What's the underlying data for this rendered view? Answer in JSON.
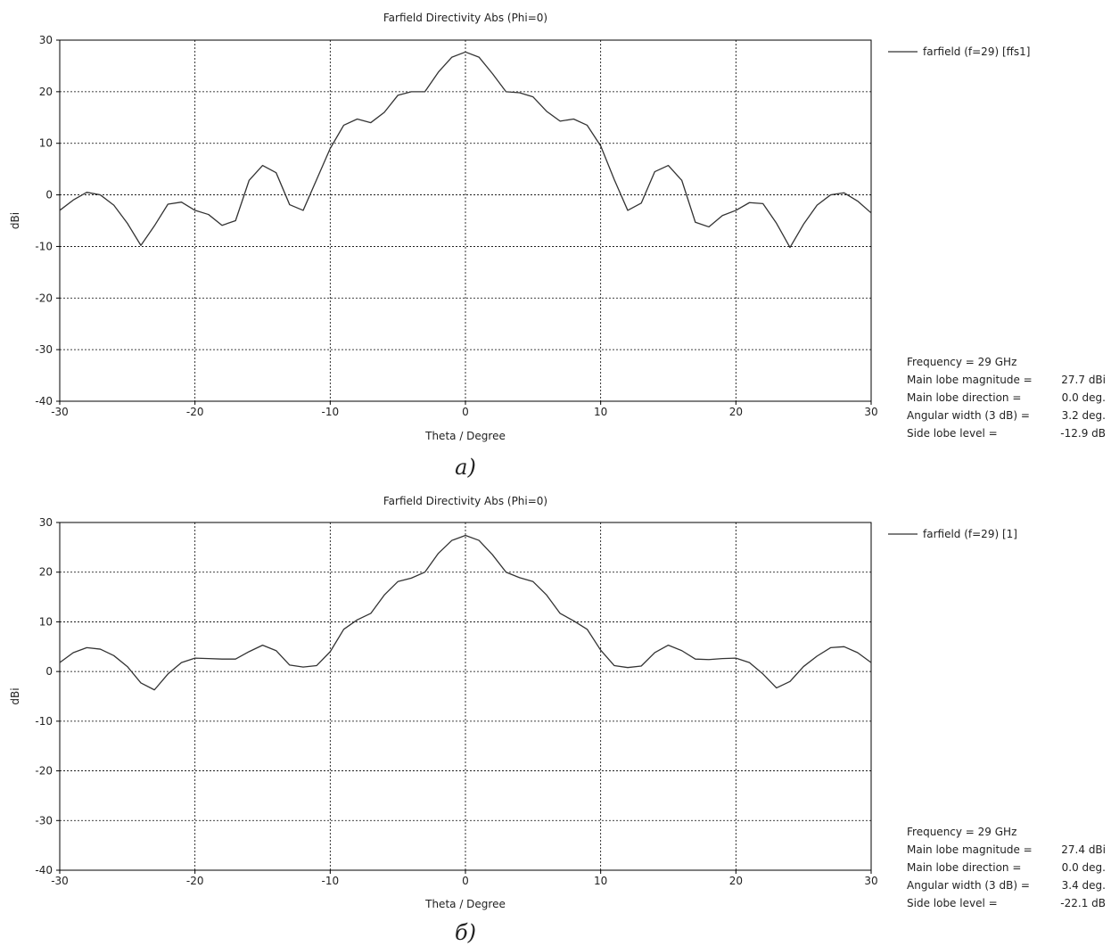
{
  "chart_data": [
    {
      "type": "line",
      "title": "Farfield Directivity Abs (Phi=0)",
      "xlabel": "Theta / Degree",
      "ylabel": "dBi",
      "xlim": [
        -30,
        30
      ],
      "ylim": [
        -40,
        30
      ],
      "xticks": [
        -30,
        -20,
        -10,
        0,
        10,
        20,
        30
      ],
      "yticks": [
        -40,
        -30,
        -20,
        -10,
        0,
        10,
        20,
        30
      ],
      "grid": true,
      "legend_position": "right",
      "caption": "a)",
      "series": [
        {
          "name": "farfield (f=29) [ffs1]",
          "color": "#333333",
          "x": [
            -30,
            -29,
            -28,
            -27,
            -26,
            -25,
            -24,
            -23,
            -22,
            -21,
            -20,
            -19,
            -18,
            -17,
            -16,
            -15,
            -14,
            -13,
            -12,
            -11,
            -10,
            -9,
            -8,
            -7,
            -6,
            -5,
            -4,
            -3,
            -2,
            -1,
            0,
            1,
            2,
            3,
            4,
            5,
            6,
            7,
            8,
            9,
            10,
            11,
            12,
            13,
            14,
            15,
            16,
            17,
            18,
            19,
            20,
            21,
            22,
            23,
            24,
            25,
            26,
            27,
            28,
            29,
            30
          ],
          "y": [
            -3,
            -1,
            0.5,
            0,
            -2,
            -5.5,
            -9.8,
            -6,
            -1.8,
            -1.4,
            -3,
            -3.8,
            -5.9,
            -5,
            2.8,
            5.7,
            4.3,
            -1.9,
            -3,
            3,
            9,
            13.5,
            14.7,
            14,
            16,
            19.3,
            20,
            20,
            23.8,
            26.7,
            27.7,
            26.7,
            23.5,
            20,
            19.8,
            19,
            16.2,
            14.3,
            14.7,
            13.5,
            9.5,
            3,
            -3,
            -1.6,
            4.5,
            5.7,
            2.8,
            -5.3,
            -6.2,
            -4,
            -3,
            -1.5,
            -1.7,
            -5.5,
            -10.2,
            -5.7,
            -2,
            0,
            0.4,
            -1.2,
            -3.5
          ]
        }
      ],
      "info": [
        {
          "label": "Frequency = 29 GHz",
          "value": ""
        },
        {
          "label": "Main lobe magnitude =",
          "value": "27.7 dBi"
        },
        {
          "label": "Main lobe direction =",
          "value": "0.0 deg."
        },
        {
          "label": "Angular width (3 dB) =",
          "value": "3.2 deg."
        },
        {
          "label": "Side lobe level =",
          "value": "-12.9 dB"
        }
      ]
    },
    {
      "type": "line",
      "title": "Farfield Directivity Abs (Phi=0)",
      "xlabel": "Theta / Degree",
      "ylabel": "dBi",
      "xlim": [
        -30,
        30
      ],
      "ylim": [
        -40,
        30
      ],
      "xticks": [
        -30,
        -20,
        -10,
        0,
        10,
        20,
        30
      ],
      "yticks": [
        -40,
        -30,
        -20,
        -10,
        0,
        10,
        20,
        30
      ],
      "grid": true,
      "legend_position": "right",
      "caption": "б)",
      "series": [
        {
          "name": "farfield (f=29) [1]",
          "color": "#333333",
          "x": [
            -30,
            -29,
            -28,
            -27,
            -26,
            -25,
            -24,
            -23,
            -22,
            -21,
            -20,
            -19,
            -18,
            -17,
            -16,
            -15,
            -14,
            -13,
            -12,
            -11,
            -10,
            -9,
            -8,
            -7,
            -6,
            -5,
            -4,
            -3,
            -2,
            -1,
            0,
            1,
            2,
            3,
            4,
            5,
            6,
            7,
            8,
            9,
            10,
            11,
            12,
            13,
            14,
            15,
            16,
            17,
            18,
            19,
            20,
            21,
            22,
            23,
            24,
            25,
            26,
            27,
            28,
            29,
            30
          ],
          "y": [
            1.8,
            3.8,
            4.8,
            4.5,
            3.2,
            1,
            -2.3,
            -3.7,
            -0.5,
            1.8,
            2.7,
            2.6,
            2.5,
            2.5,
            4,
            5.3,
            4.2,
            1.3,
            0.9,
            1.2,
            4,
            8.5,
            10.4,
            11.7,
            15.4,
            18.1,
            18.8,
            20,
            23.8,
            26.4,
            27.4,
            26.4,
            23.5,
            20,
            18.9,
            18.1,
            15.4,
            11.7,
            10.2,
            8.5,
            4.3,
            1.2,
            0.8,
            1.1,
            3.8,
            5.3,
            4.2,
            2.5,
            2.4,
            2.6,
            2.7,
            1.8,
            -0.5,
            -3.3,
            -2,
            1,
            3.1,
            4.8,
            5,
            3.8,
            1.8
          ]
        }
      ],
      "info": [
        {
          "label": "Frequency = 29 GHz",
          "value": ""
        },
        {
          "label": "Main lobe magnitude =",
          "value": "27.4 dBi"
        },
        {
          "label": "Main lobe direction =",
          "value": "0.0 deg."
        },
        {
          "label": "Angular width (3 dB) =",
          "value": "3.4 deg."
        },
        {
          "label": "Side lobe level =",
          "value": "-22.1 dB"
        }
      ]
    }
  ]
}
